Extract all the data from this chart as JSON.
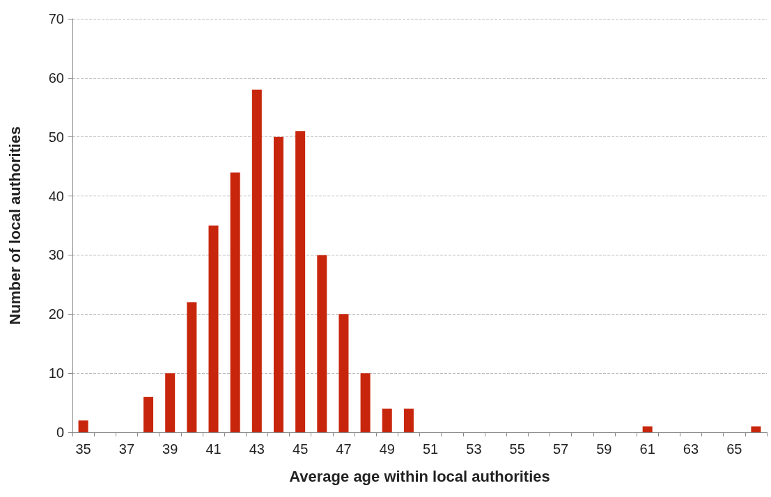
{
  "chart_data": {
    "type": "bar",
    "xlabel": "Average age within local authorities",
    "ylabel": "Number of local authorities",
    "categories": [
      "35",
      null,
      "37",
      null,
      "39",
      null,
      "41",
      null,
      "43",
      null,
      "45",
      null,
      "47",
      null,
      "49",
      null,
      "51",
      null,
      "53",
      null,
      "55",
      null,
      "57",
      null,
      "59",
      null,
      "61",
      null,
      "63",
      null,
      "65",
      null
    ],
    "values": [
      2,
      0,
      0,
      6,
      10,
      22,
      35,
      44,
      58,
      50,
      51,
      30,
      20,
      10,
      4,
      4,
      0,
      0,
      0,
      0,
      0,
      0,
      0,
      0,
      0,
      0,
      1,
      0,
      0,
      0,
      0,
      1
    ],
    "color": "#c8260c",
    "ylim": [
      0,
      70
    ],
    "yticks": [
      0,
      10,
      20,
      30,
      40,
      50,
      60,
      70
    ],
    "grid": "y"
  }
}
